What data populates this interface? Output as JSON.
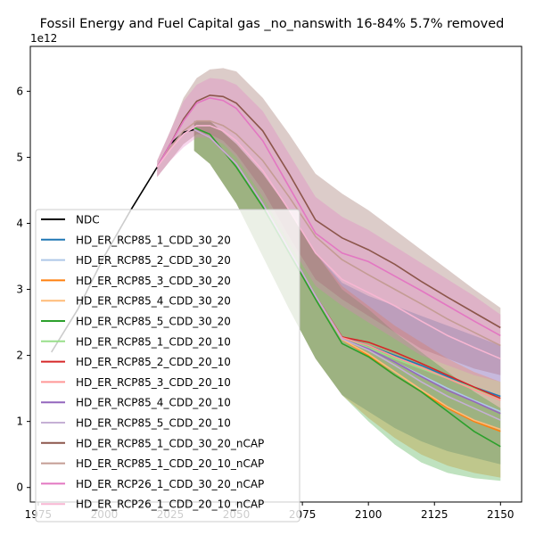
{
  "chart_data": {
    "type": "line",
    "title": "Fossil Energy and Fuel Capital gas _no_nanswith 16-84% 5.7% removed",
    "xlabel": "",
    "ylabel": "",
    "y_offset_label": "1e12",
    "xlim": [
      1972,
      2158
    ],
    "ylim": [
      -0.22,
      6.68
    ],
    "y_scale_note": "values in units of 1e12",
    "x_ticks": [
      1975,
      2000,
      2025,
      2050,
      2075,
      2100,
      2125,
      2150
    ],
    "y_ticks": [
      0,
      1,
      2,
      3,
      4,
      5,
      6
    ],
    "grid": false,
    "legend_position": "lower-left",
    "band_note": "shaded bands show 16-84% range per series",
    "series": [
      {
        "name": "NDC",
        "color": "#000000",
        "x": [
          1980,
          1990,
          2000,
          2010,
          2020,
          2025,
          2030,
          2034
        ],
        "values": [
          2.05,
          2.7,
          3.5,
          4.2,
          4.85,
          5.2,
          5.38,
          5.42
        ]
      },
      {
        "name": "HD_ER_RCP85_1_CDD_30_20",
        "color": "#1f77b4",
        "x": [
          2034,
          2040,
          2050,
          2060,
          2070,
          2080,
          2090,
          2100,
          2110,
          2120,
          2130,
          2140,
          2150
        ],
        "values": [
          5.42,
          5.3,
          4.9,
          4.3,
          3.6,
          2.9,
          2.28,
          2.15,
          2.0,
          1.85,
          1.68,
          1.52,
          1.38
        ],
        "band_low": [
          5.1,
          4.9,
          4.3,
          3.5,
          2.7,
          1.95,
          1.4,
          1.15,
          0.9,
          0.7,
          0.55,
          0.45,
          0.35
        ],
        "band_high": [
          5.55,
          5.55,
          5.2,
          4.75,
          4.2,
          3.55,
          3.1,
          2.9,
          2.75,
          2.6,
          2.45,
          2.3,
          2.15
        ]
      },
      {
        "name": "HD_ER_RCP85_2_CDD_30_20",
        "color": "#aec7e8",
        "x": [
          2034,
          2040,
          2050,
          2060,
          2070,
          2080,
          2090,
          2100,
          2110,
          2120,
          2130,
          2140,
          2150
        ],
        "values": [
          5.42,
          5.3,
          4.9,
          4.3,
          3.6,
          2.9,
          2.26,
          2.1,
          1.9,
          1.7,
          1.5,
          1.32,
          1.15
        ]
      },
      {
        "name": "HD_ER_RCP85_3_CDD_30_20",
        "color": "#ff7f0e",
        "x": [
          2034,
          2040,
          2050,
          2060,
          2070,
          2080,
          2090,
          2100,
          2110,
          2120,
          2130,
          2140,
          2150
        ],
        "values": [
          5.42,
          5.3,
          4.9,
          4.3,
          3.6,
          2.9,
          2.24,
          2.0,
          1.7,
          1.45,
          1.2,
          1.0,
          0.85
        ],
        "band_low": [
          5.1,
          4.9,
          4.3,
          3.5,
          2.7,
          1.95,
          1.4,
          1.05,
          0.75,
          0.5,
          0.33,
          0.22,
          0.15
        ],
        "band_high": [
          5.55,
          5.55,
          5.2,
          4.75,
          4.2,
          3.55,
          3.05,
          2.75,
          2.45,
          2.2,
          1.95,
          1.75,
          1.6
        ]
      },
      {
        "name": "HD_ER_RCP85_4_CDD_30_20",
        "color": "#ffbb78",
        "x": [
          2034,
          2040,
          2050,
          2060,
          2070,
          2080,
          2090,
          2100,
          2110,
          2120,
          2130,
          2140,
          2150
        ],
        "values": [
          5.42,
          5.3,
          4.9,
          4.3,
          3.6,
          2.9,
          2.24,
          2.02,
          1.75,
          1.48,
          1.22,
          1.02,
          0.88
        ]
      },
      {
        "name": "HD_ER_RCP85_5_CDD_30_20",
        "color": "#2ca02c",
        "x": [
          2034,
          2040,
          2050,
          2060,
          2070,
          2080,
          2090,
          2100,
          2110,
          2120,
          2130,
          2140,
          2150
        ],
        "values": [
          5.45,
          5.35,
          4.85,
          4.25,
          3.55,
          2.85,
          2.18,
          1.98,
          1.7,
          1.45,
          1.15,
          0.85,
          0.62
        ],
        "band_low": [
          5.1,
          4.9,
          4.3,
          3.5,
          2.7,
          1.95,
          1.4,
          1.0,
          0.65,
          0.38,
          0.22,
          0.14,
          0.1
        ],
        "band_high": [
          5.55,
          5.55,
          5.2,
          4.75,
          4.2,
          3.55,
          3.0,
          2.7,
          2.35,
          2.05,
          1.75,
          1.45,
          1.2
        ]
      },
      {
        "name": "HD_ER_RCP85_1_CDD_20_10",
        "color": "#98df8a",
        "x": [
          2034,
          2040,
          2050,
          2060,
          2070,
          2080,
          2090,
          2100,
          2110,
          2120,
          2130,
          2140,
          2150
        ],
        "values": [
          5.42,
          5.3,
          4.9,
          4.3,
          3.6,
          2.9,
          2.26,
          2.12,
          1.95,
          1.8,
          1.65,
          1.5,
          1.35
        ]
      },
      {
        "name": "HD_ER_RCP85_2_CDD_20_10",
        "color": "#d62728",
        "x": [
          2034,
          2040,
          2050,
          2060,
          2070,
          2080,
          2090,
          2100,
          2110,
          2120,
          2130,
          2140,
          2150
        ],
        "values": [
          5.42,
          5.3,
          4.9,
          4.3,
          3.6,
          2.9,
          2.28,
          2.2,
          2.05,
          1.88,
          1.7,
          1.52,
          1.35
        ]
      },
      {
        "name": "HD_ER_RCP85_3_CDD_20_10",
        "color": "#ff9896",
        "x": [
          2034,
          2040,
          2050,
          2060,
          2070,
          2080,
          2090,
          2100,
          2110,
          2120,
          2130,
          2140,
          2150
        ],
        "values": [
          5.42,
          5.3,
          4.9,
          4.3,
          3.6,
          2.9,
          2.27,
          2.15,
          1.98,
          1.82,
          1.65,
          1.48,
          1.32
        ]
      },
      {
        "name": "HD_ER_RCP85_4_CDD_20_10",
        "color": "#9467bd",
        "x": [
          2034,
          2040,
          2050,
          2060,
          2070,
          2080,
          2090,
          2100,
          2110,
          2120,
          2130,
          2140,
          2150
        ],
        "values": [
          5.42,
          5.3,
          4.9,
          4.3,
          3.6,
          2.9,
          2.25,
          2.1,
          1.9,
          1.68,
          1.47,
          1.3,
          1.12
        ]
      },
      {
        "name": "HD_ER_RCP85_5_CDD_20_10",
        "color": "#c5b0d5",
        "x": [
          2034,
          2040,
          2050,
          2060,
          2070,
          2080,
          2090,
          2100,
          2110,
          2120,
          2130,
          2140,
          2150
        ],
        "values": [
          5.42,
          5.3,
          4.9,
          4.3,
          3.6,
          2.9,
          2.25,
          2.08,
          1.85,
          1.6,
          1.38,
          1.2,
          1.02
        ]
      },
      {
        "name": "HD_ER_RCP85_1_CDD_30_20_nCAP",
        "color": "#8c564b",
        "x": [
          2020,
          2025,
          2030,
          2035,
          2040,
          2045,
          2050,
          2060,
          2070,
          2080,
          2090,
          2100,
          2110,
          2120,
          2130,
          2140,
          2150
        ],
        "values": [
          4.85,
          5.2,
          5.58,
          5.85,
          5.94,
          5.92,
          5.82,
          5.4,
          4.75,
          4.05,
          3.78,
          3.6,
          3.38,
          3.12,
          2.88,
          2.65,
          2.42
        ],
        "band_low": [
          4.7,
          4.95,
          5.2,
          5.35,
          5.35,
          5.25,
          5.05,
          4.5,
          3.8,
          3.15,
          2.85,
          2.6,
          2.35,
          2.1,
          1.95,
          1.8,
          1.7
        ],
        "band_high": [
          4.95,
          5.4,
          5.9,
          6.2,
          6.33,
          6.35,
          6.3,
          5.9,
          5.35,
          4.75,
          4.45,
          4.2,
          3.9,
          3.6,
          3.3,
          3.0,
          2.72
        ]
      },
      {
        "name": "HD_ER_RCP85_1_CDD_20_10_nCAP",
        "color": "#c49c94",
        "x": [
          2020,
          2025,
          2030,
          2035,
          2040,
          2045,
          2050,
          2060,
          2070,
          2080,
          2090,
          2100,
          2110,
          2120,
          2130,
          2140,
          2150
        ],
        "values": [
          4.85,
          5.15,
          5.4,
          5.55,
          5.55,
          5.48,
          5.35,
          4.95,
          4.4,
          3.8,
          3.45,
          3.22,
          3.0,
          2.78,
          2.55,
          2.35,
          2.15
        ]
      },
      {
        "name": "HD_ER_RCP26_1_CDD_30_20_nCAP",
        "color": "#e377c2",
        "x": [
          2020,
          2025,
          2030,
          2035,
          2040,
          2045,
          2050,
          2060,
          2070,
          2080,
          2090,
          2100,
          2110,
          2120,
          2130,
          2140,
          2150
        ],
        "values": [
          4.85,
          5.2,
          5.55,
          5.82,
          5.9,
          5.86,
          5.74,
          5.25,
          4.55,
          3.85,
          3.55,
          3.42,
          3.2,
          2.98,
          2.75,
          2.52,
          2.3
        ],
        "band_low": [
          4.7,
          4.95,
          5.15,
          5.3,
          5.3,
          5.2,
          5.0,
          4.4,
          3.7,
          3.05,
          2.75,
          2.5,
          2.25,
          2.0,
          1.85,
          1.7,
          1.6
        ],
        "band_high": [
          4.95,
          5.4,
          5.85,
          6.1,
          6.2,
          6.18,
          6.1,
          5.7,
          5.05,
          4.4,
          4.1,
          3.9,
          3.65,
          3.4,
          3.15,
          2.9,
          2.62
        ]
      },
      {
        "name": "HD_ER_RCP26_1_CDD_20_10_nCAP",
        "color": "#f7b6d2",
        "x": [
          2020,
          2025,
          2030,
          2035,
          2040,
          2045,
          2050,
          2060,
          2070,
          2080,
          2090,
          2100,
          2110,
          2120,
          2130,
          2140,
          2150
        ],
        "values": [
          4.85,
          5.12,
          5.35,
          5.48,
          5.48,
          5.4,
          5.25,
          4.8,
          4.2,
          3.55,
          3.15,
          2.95,
          2.75,
          2.52,
          2.3,
          2.12,
          1.95
        ]
      }
    ]
  }
}
